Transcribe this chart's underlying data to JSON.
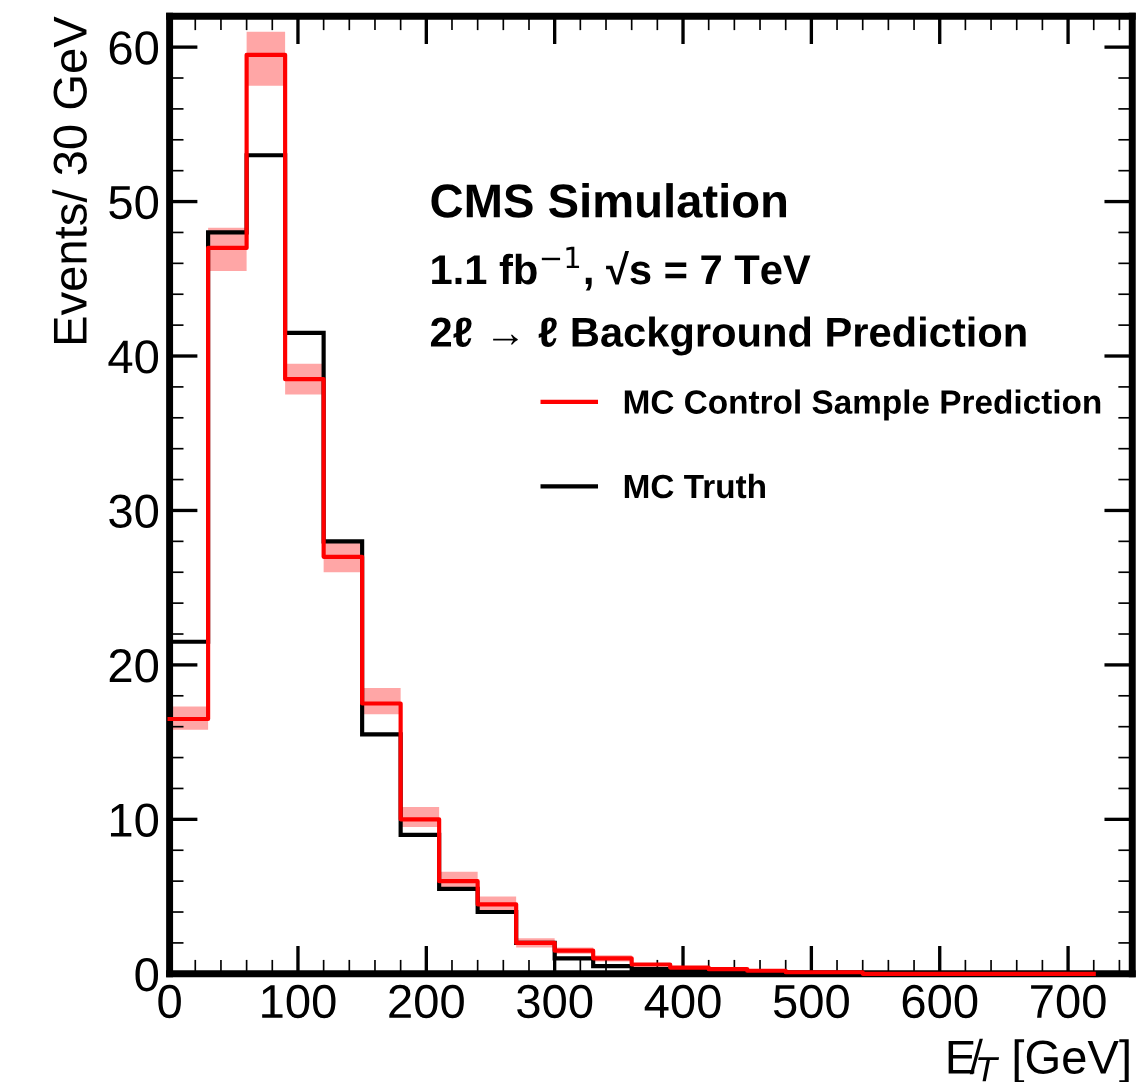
{
  "chart_data": {
    "type": "histogram",
    "xlabel": "E̸$_{T}$ [GeV]",
    "ylabel": "Events/ 30 GeV",
    "annotations": [
      "CMS Simulation",
      "1.1 fb$^{−1}$, √s = 7 TeV",
      "2ℓ → ℓ Background Prediction"
    ],
    "bins": [
      0,
      30,
      60,
      90,
      120,
      150,
      180,
      210,
      240,
      270,
      300,
      330,
      360,
      390,
      420,
      450,
      480,
      510,
      540,
      570,
      600,
      630,
      660,
      690,
      720,
      750
    ],
    "series": [
      {
        "name": "MC Control Sample Prediction",
        "type": "step",
        "color": "#ff0000",
        "x": [
          0,
          30,
          60,
          90,
          120,
          150,
          180,
          210,
          240,
          270,
          300,
          330,
          360,
          390,
          420,
          450,
          480,
          510,
          540,
          570,
          600,
          630,
          660,
          690,
          720
        ],
        "values": [
          16.5,
          47,
          59.5,
          38.5,
          27,
          17.5,
          10,
          6,
          4.5,
          2,
          1.5,
          1,
          0.6,
          0.4,
          0.3,
          0.2,
          0.1,
          0.1,
          0,
          0,
          0,
          0,
          0,
          0,
          0
        ],
        "lower": [
          15.8,
          45.5,
          57.5,
          37.5,
          26,
          16.8,
          9.5,
          5.6,
          4.1,
          1.7,
          1.3,
          0.8,
          0.5,
          0.3,
          0.2,
          0.1,
          0,
          0,
          0,
          0,
          0,
          0,
          0,
          0,
          0
        ],
        "upper": [
          17.3,
          48.3,
          61,
          39.5,
          28,
          18.5,
          10.8,
          6.6,
          5,
          2.3,
          1.7,
          1.2,
          0.7,
          0.5,
          0.4,
          0.3,
          0.2,
          0.2,
          0,
          0,
          0,
          0,
          0,
          0,
          0
        ]
      },
      {
        "name": "MC Truth",
        "color": "#000000",
        "values": [
          21.5,
          48,
          53,
          41.5,
          28,
          15.5,
          9,
          5.5,
          4,
          2,
          1,
          0.5,
          0.3,
          0.2,
          0.2,
          0.1,
          0,
          0,
          0,
          0,
          0,
          0,
          0,
          0,
          0
        ]
      }
    ],
    "xlim": [
      0,
      750
    ],
    "ylim": [
      0,
      62
    ],
    "xticks": [
      0,
      100,
      200,
      300,
      400,
      500,
      600,
      700
    ],
    "yticks": [
      0,
      10,
      20,
      30,
      40,
      50,
      60
    ],
    "legend": "right",
    "grid": false
  }
}
